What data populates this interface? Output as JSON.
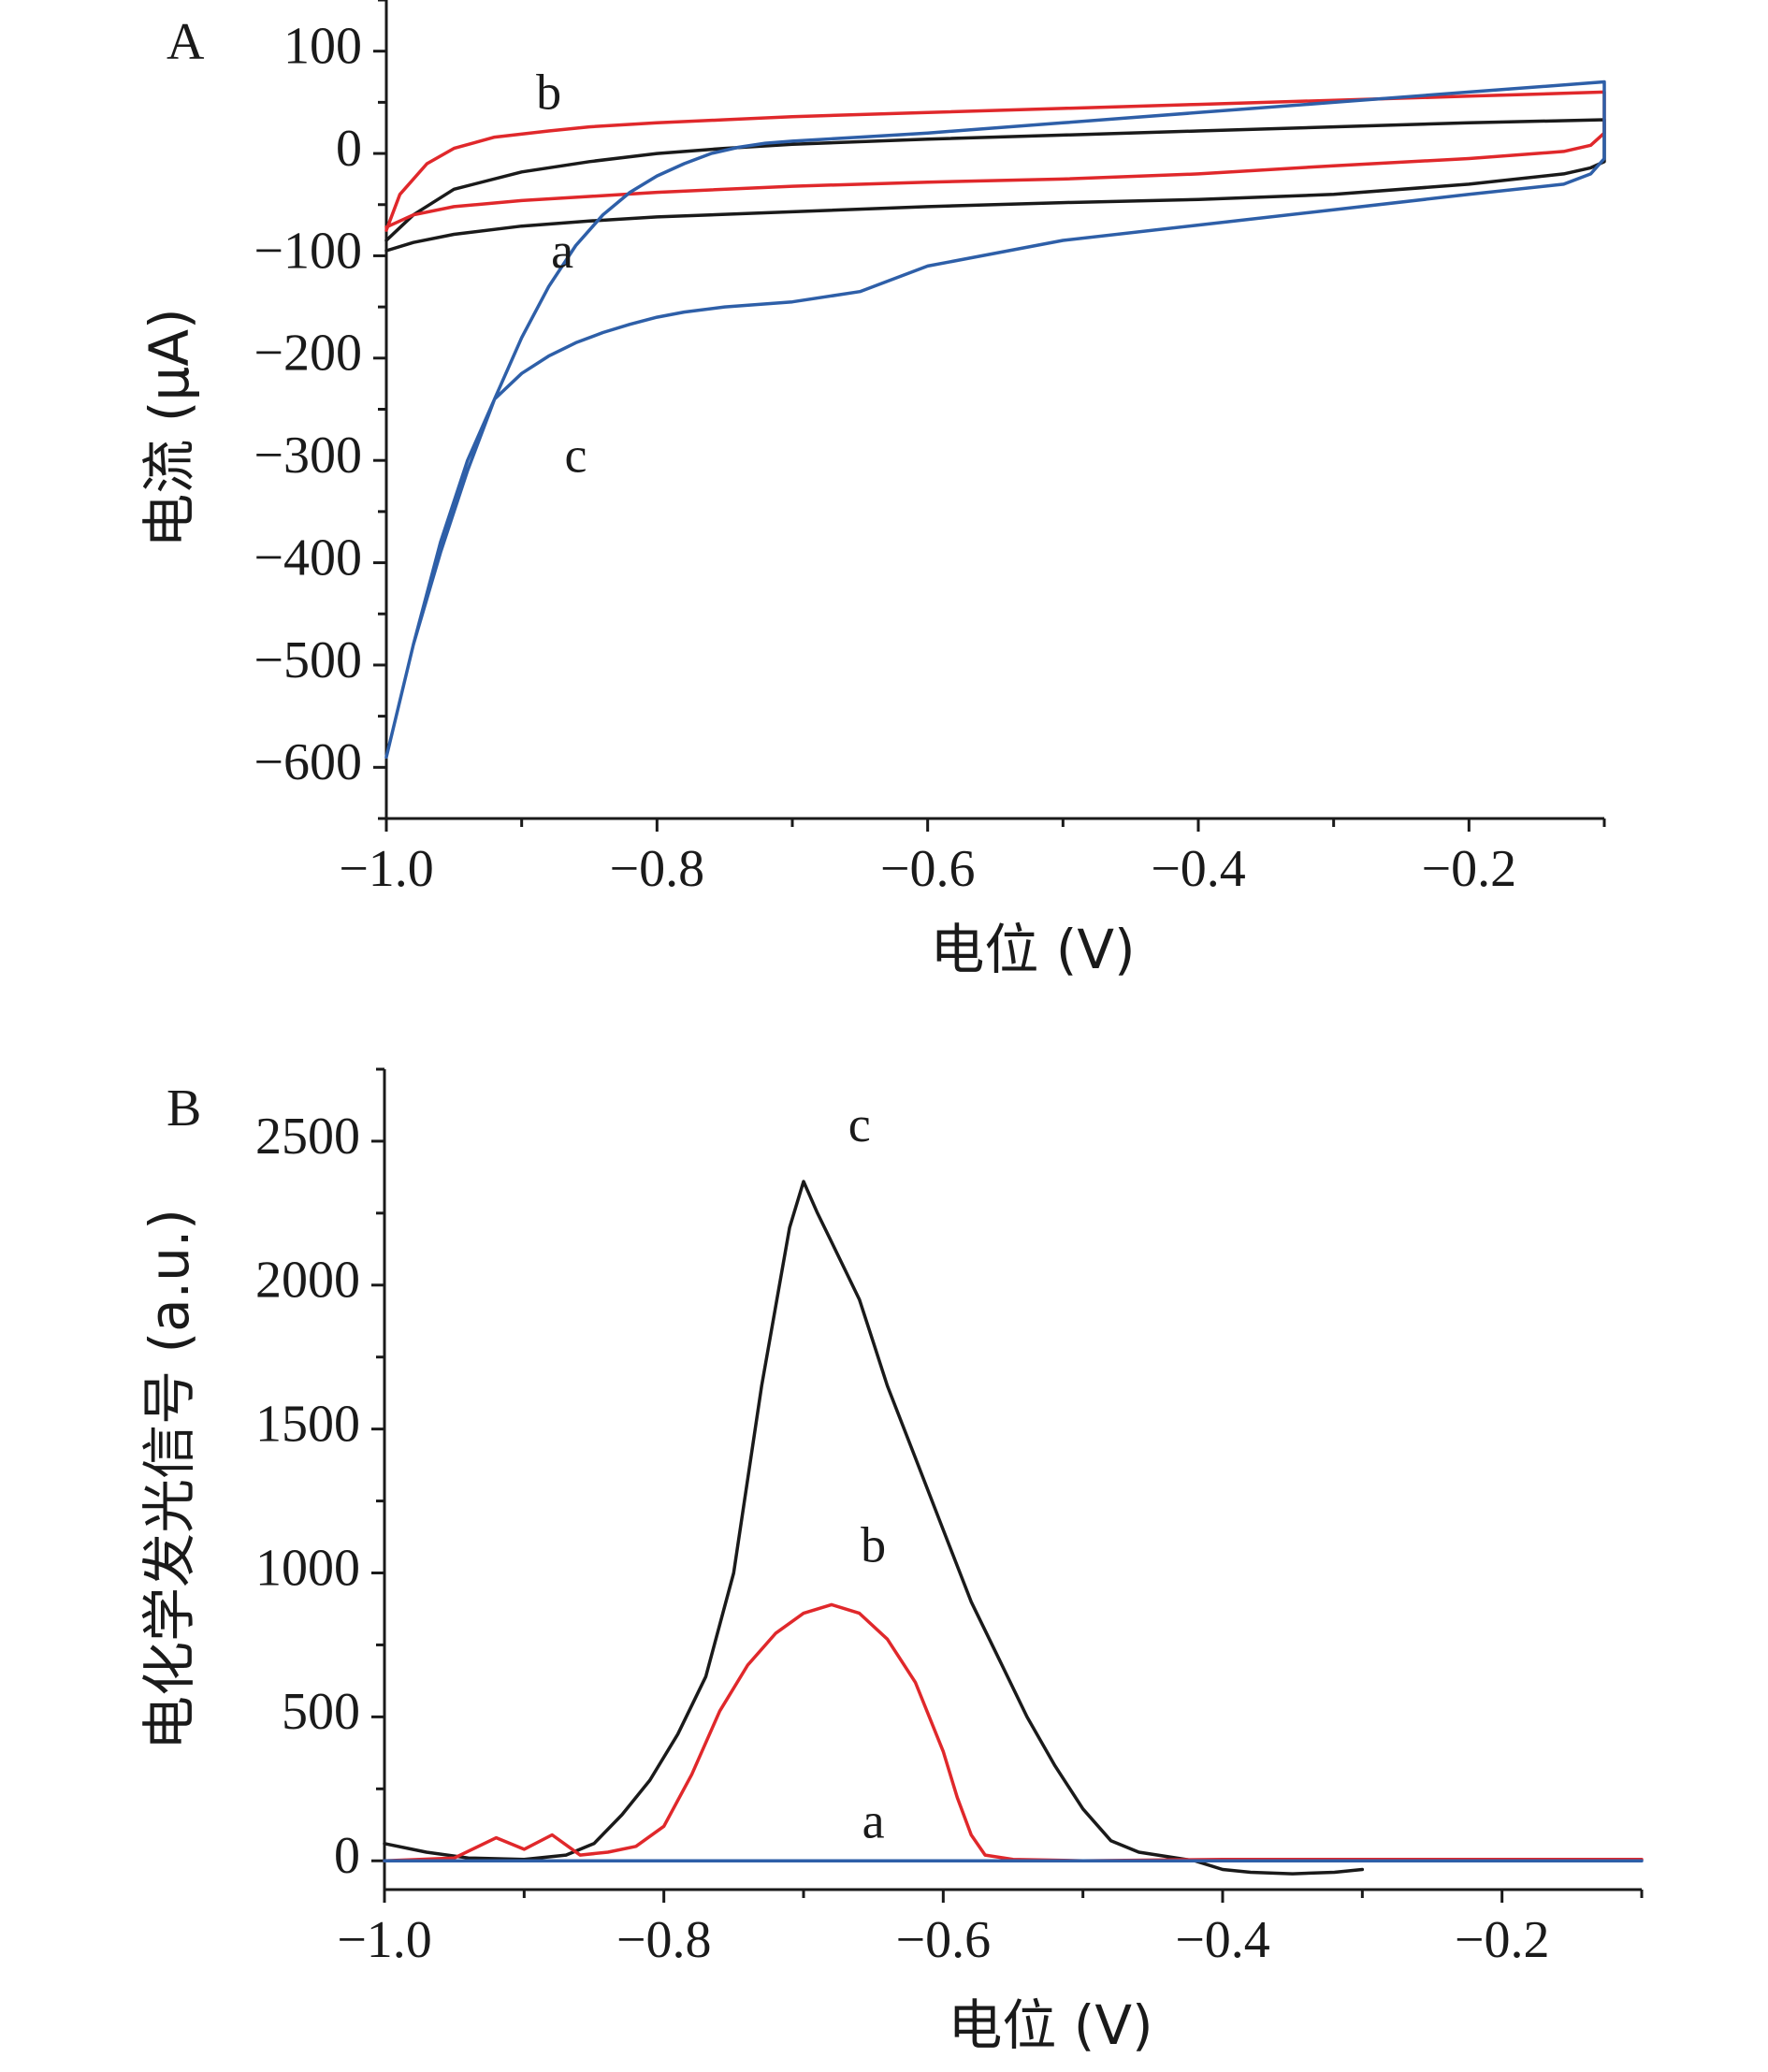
{
  "chart_data": [
    {
      "panel": "A",
      "type": "line",
      "xlabel": "电位 (V)",
      "ylabel": "电流 (μA)",
      "xlim": [
        -1.0,
        -0.1
      ],
      "ylim": [
        -650,
        150
      ],
      "xticks": [
        -1.0,
        -0.8,
        -0.6,
        -0.4,
        -0.2
      ],
      "xtick_labels": [
        "−1.0",
        "−0.8",
        "−0.6",
        "−0.4",
        "−0.2"
      ],
      "yticks": [
        100,
        0,
        -100,
        -200,
        -300,
        -400,
        -500,
        -600
      ],
      "ytick_labels": [
        "100",
        "0",
        "−100",
        "−200",
        "−300",
        "−400",
        "−500",
        "−600"
      ],
      "series": [
        {
          "name": "a",
          "color": "#1a1a1a",
          "x": [
            -1.0,
            -0.98,
            -0.95,
            -0.9,
            -0.85,
            -0.8,
            -0.75,
            -0.7,
            -0.6,
            -0.5,
            -0.4,
            -0.3,
            -0.2,
            -0.1,
            -0.1,
            -0.11,
            -0.13,
            -0.2,
            -0.3,
            -0.4,
            -0.5,
            -0.6,
            -0.7,
            -0.8,
            -0.85,
            -0.9,
            -0.95,
            -0.98,
            -1.0
          ],
          "y": [
            -85,
            -60,
            -35,
            -18,
            -8,
            0,
            5,
            9,
            14,
            18,
            22,
            26,
            30,
            33,
            -8,
            -14,
            -20,
            -30,
            -40,
            -45,
            -48,
            -52,
            -57,
            -62,
            -66,
            -71,
            -79,
            -87,
            -95
          ]
        },
        {
          "name": "b",
          "color": "#e0282b",
          "x": [
            -1.0,
            -0.99,
            -0.97,
            -0.95,
            -0.92,
            -0.88,
            -0.85,
            -0.8,
            -0.75,
            -0.7,
            -0.6,
            -0.5,
            -0.4,
            -0.3,
            -0.2,
            -0.1,
            -0.1,
            -0.11,
            -0.13,
            -0.2,
            -0.3,
            -0.4,
            -0.5,
            -0.6,
            -0.7,
            -0.8,
            -0.85,
            -0.9,
            -0.95,
            -0.98,
            -1.0
          ],
          "y": [
            -75,
            -40,
            -10,
            5,
            16,
            22,
            26,
            30,
            33,
            36,
            40,
            44,
            48,
            52,
            56,
            60,
            20,
            8,
            2,
            -5,
            -12,
            -20,
            -25,
            -28,
            -32,
            -38,
            -42,
            -46,
            -52,
            -60,
            -72
          ]
        },
        {
          "name": "c",
          "color": "#2e5fa8",
          "x": [
            -1.0,
            -0.98,
            -0.96,
            -0.94,
            -0.92,
            -0.9,
            -0.88,
            -0.86,
            -0.84,
            -0.82,
            -0.8,
            -0.78,
            -0.76,
            -0.74,
            -0.72,
            -0.7,
            -0.65,
            -0.6,
            -0.5,
            -0.4,
            -0.3,
            -0.2,
            -0.1,
            -0.1,
            -0.11,
            -0.13,
            -0.2,
            -0.3,
            -0.4,
            -0.5,
            -0.6,
            -0.65,
            -0.7,
            -0.75,
            -0.78,
            -0.8,
            -0.82,
            -0.84,
            -0.86,
            -0.88,
            -0.9,
            -0.92,
            -0.94,
            -0.96,
            -0.98,
            -1.0
          ],
          "y": [
            -590,
            -480,
            -390,
            -310,
            -240,
            -180,
            -130,
            -90,
            -60,
            -38,
            -22,
            -10,
            0,
            6,
            10,
            12,
            16,
            20,
            30,
            40,
            50,
            60,
            70,
            -5,
            -20,
            -30,
            -40,
            -55,
            -70,
            -85,
            -110,
            -135,
            -145,
            -150,
            -155,
            -160,
            -167,
            -175,
            -185,
            -198,
            -215,
            -240,
            -300,
            -380,
            -480,
            -590
          ]
        }
      ],
      "annotations": [
        {
          "text": "b",
          "x": -0.88,
          "y": 55
        },
        {
          "text": "a",
          "x": -0.87,
          "y": -100
        },
        {
          "text": "c",
          "x": -0.86,
          "y": -300
        }
      ]
    },
    {
      "panel": "B",
      "type": "line",
      "xlabel": "电位 (V)",
      "ylabel": "电化学发光信号 (a.u.)",
      "xlim": [
        -1.0,
        -0.1
      ],
      "ylim": [
        -100,
        2750
      ],
      "xticks": [
        -1.0,
        -0.8,
        -0.6,
        -0.4,
        -0.2
      ],
      "xtick_labels": [
        "−1.0",
        "−0.8",
        "−0.6",
        "−0.4",
        "−0.2"
      ],
      "yticks": [
        0,
        500,
        1000,
        1500,
        2000,
        2500
      ],
      "ytick_labels": [
        "0",
        "500",
        "1000",
        "1500",
        "2000",
        "2500"
      ],
      "series": [
        {
          "name": "c",
          "color": "#1a1a1a",
          "x": [
            -1.0,
            -0.97,
            -0.94,
            -0.9,
            -0.87,
            -0.85,
            -0.83,
            -0.81,
            -0.79,
            -0.77,
            -0.75,
            -0.73,
            -0.71,
            -0.7,
            -0.69,
            -0.68,
            -0.67,
            -0.66,
            -0.65,
            -0.64,
            -0.62,
            -0.6,
            -0.58,
            -0.56,
            -0.54,
            -0.52,
            -0.5,
            -0.48,
            -0.46,
            -0.44,
            -0.42,
            -0.4,
            -0.38,
            -0.35,
            -0.32,
            -0.3
          ],
          "y": [
            60,
            30,
            10,
            5,
            20,
            60,
            160,
            280,
            440,
            640,
            1000,
            1650,
            2200,
            2360,
            2250,
            2150,
            2050,
            1950,
            1800,
            1650,
            1400,
            1150,
            900,
            700,
            500,
            330,
            180,
            70,
            30,
            15,
            0,
            -30,
            -40,
            -45,
            -40,
            -30
          ]
        },
        {
          "name": "b",
          "color": "#e0282b",
          "x": [
            -1.0,
            -0.95,
            -0.92,
            -0.9,
            -0.88,
            -0.86,
            -0.84,
            -0.82,
            -0.8,
            -0.78,
            -0.76,
            -0.74,
            -0.72,
            -0.7,
            -0.68,
            -0.66,
            -0.64,
            -0.62,
            -0.6,
            -0.59,
            -0.58,
            -0.57,
            -0.55,
            -0.5,
            -0.4,
            -0.3,
            -0.2,
            -0.1
          ],
          "y": [
            0,
            10,
            80,
            40,
            90,
            20,
            30,
            50,
            120,
            300,
            520,
            680,
            790,
            860,
            890,
            860,
            770,
            620,
            380,
            220,
            90,
            20,
            5,
            0,
            5,
            5,
            5,
            5
          ]
        },
        {
          "name": "a",
          "color": "#2e5fa8",
          "x": [
            -1.0,
            -0.9,
            -0.8,
            -0.7,
            -0.6,
            -0.5,
            -0.4,
            -0.3,
            -0.2,
            -0.1
          ],
          "y": [
            0,
            0,
            0,
            0,
            0,
            0,
            0,
            0,
            0,
            0
          ]
        }
      ],
      "annotations": [
        {
          "text": "c",
          "x": -0.66,
          "y": 2540
        },
        {
          "text": "b",
          "x": -0.65,
          "y": 1080
        },
        {
          "text": "a",
          "x": -0.65,
          "y": 120
        }
      ]
    }
  ]
}
